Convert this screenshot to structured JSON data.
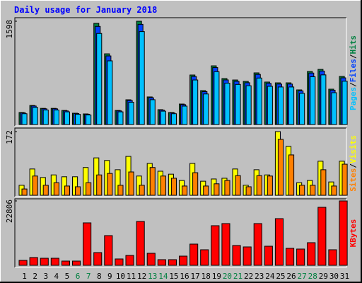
{
  "chart_data": [
    {
      "type": "bar",
      "title": "Daily usage for January 2018",
      "ylim": [
        0,
        1598
      ],
      "yticks": [
        1598
      ],
      "legend_separator": "/",
      "series": [
        {
          "name": "Hits",
          "color": "#008040",
          "values": [
            186,
            295,
            250,
            250,
            218,
            175,
            164,
            1565,
            1094,
            218,
            383,
            1598,
            427,
            230,
            186,
            317,
            766,
            525,
            908,
            711,
            689,
            667,
            799,
            657,
            645,
            645,
            536,
            821,
            853,
            547,
            744
          ]
        },
        {
          "name": "Files",
          "color": "#0040ff",
          "values": [
            180,
            286,
            243,
            243,
            211,
            170,
            159,
            1518,
            1061,
            211,
            372,
            1550,
            414,
            223,
            180,
            307,
            743,
            509,
            881,
            690,
            668,
            647,
            775,
            637,
            626,
            626,
            520,
            796,
            827,
            531,
            722
          ]
        },
        {
          "name": "Pages",
          "color": "#00c0ff",
          "values": [
            167,
            266,
            225,
            225,
            196,
            158,
            148,
            1409,
            985,
            196,
            345,
            1438,
            384,
            207,
            167,
            285,
            689,
            473,
            817,
            640,
            620,
            600,
            719,
            591,
            581,
            581,
            482,
            739,
            768,
            492,
            670
          ]
        }
      ]
    },
    {
      "type": "bar",
      "ylim": [
        0,
        172
      ],
      "yticks": [
        172
      ],
      "legend_separator": "/",
      "series": [
        {
          "name": "Visits",
          "color": "#ffff00",
          "values": [
            27,
            71,
            48,
            55,
            50,
            50,
            75,
            101,
            94,
            69,
            105,
            52,
            86,
            65,
            57,
            40,
            86,
            38,
            44,
            46,
            71,
            27,
            69,
            55,
            172,
            132,
            34,
            40,
            92,
            36,
            92
          ]
        },
        {
          "name": "Sites",
          "color": "#ff8000",
          "values": [
            17,
            52,
            27,
            34,
            25,
            23,
            34,
            55,
            59,
            27,
            63,
            27,
            75,
            52,
            46,
            25,
            61,
            25,
            31,
            40,
            53,
            23,
            53,
            52,
            151,
            109,
            27,
            27,
            69,
            25,
            84
          ]
        }
      ]
    },
    {
      "type": "bar",
      "ylim": [
        0,
        22806
      ],
      "yticks": [
        22806
      ],
      "categories": [
        "1",
        "2",
        "3",
        "4",
        "5",
        "6",
        "7",
        "8",
        "9",
        "10",
        "11",
        "12",
        "13",
        "14",
        "15",
        "16",
        "17",
        "18",
        "19",
        "20",
        "21",
        "22",
        "23",
        "24",
        "25",
        "26",
        "27",
        "28",
        "29",
        "30",
        "31"
      ],
      "category_colors": [
        "#000000",
        "#000000",
        "#000000",
        "#000000",
        "#000000",
        "#008040",
        "#008040",
        "#000000",
        "#000000",
        "#000000",
        "#000000",
        "#000000",
        "#008040",
        "#008040",
        "#000000",
        "#000000",
        "#000000",
        "#000000",
        "#000000",
        "#008040",
        "#008040",
        "#000000",
        "#000000",
        "#000000",
        "#000000",
        "#000000",
        "#008040",
        "#008040",
        "#000000",
        "#000000",
        "#000000"
      ],
      "series": [
        {
          "name": "KBytes",
          "color": "#ff0000",
          "values": [
            1754,
            2757,
            2506,
            2506,
            1504,
            1504,
            15037,
            4511,
            10526,
            2255,
            3509,
            15538,
            4260,
            2005,
            2005,
            3258,
            7518,
            5514,
            14034,
            14786,
            7017,
            6516,
            14786,
            6767,
            16541,
            6015,
            5764,
            8020,
            20550,
            5514,
            22806
          ]
        }
      ]
    }
  ]
}
